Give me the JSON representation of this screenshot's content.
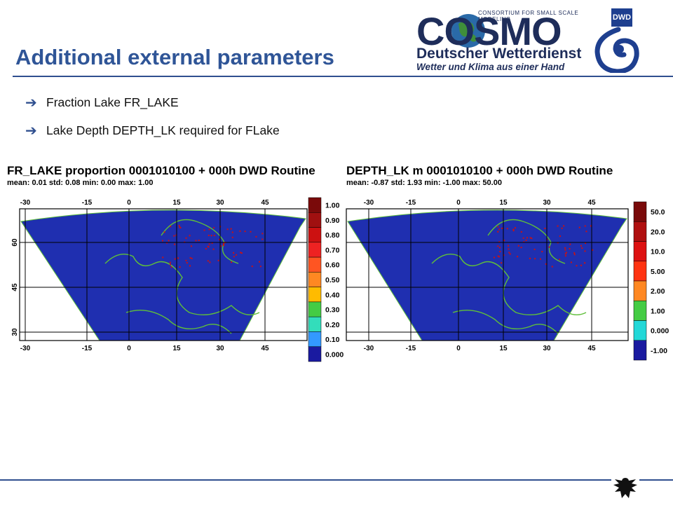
{
  "slide": {
    "title": "Additional external parameters",
    "bullets": [
      {
        "icon": "arrow-right-icon",
        "text": "Fraction Lake FR_LAKE"
      },
      {
        "icon": "arrow-right-icon",
        "text": "Lake Depth DEPTH_LK required for FLake"
      }
    ]
  },
  "logos": {
    "cosmo_word": "COSMO",
    "consortium": "CONSORTIUM FOR SMALL SCALE MODELING",
    "dwd_name": "Deutscher Wetterdienst",
    "dwd_slogan": "Wetter und Klima aus einer Hand",
    "dwd_badge": "DWD"
  },
  "colors": {
    "title": "#2f5597",
    "rule": "#2f4f8f",
    "map_background": "#1f2fb0",
    "coastline": "#5fbf3a",
    "lake_marks": "#cc1111"
  },
  "chart_data": [
    {
      "type": "heatmap",
      "title": "FR_LAKE proportion  0001010100 +   000h DWD Routine",
      "stats": "mean:   0.01  std:   0.08   min:   0.00   max:   1.00",
      "x_ticks": [
        "-30",
        "-15",
        "0",
        "15",
        "30",
        "45"
      ],
      "y_ticks": [
        "60",
        "45",
        "30"
      ],
      "legend": {
        "labels": [
          "1.00",
          "0.90",
          "0.80",
          "0.70",
          "0.60",
          "0.50",
          "0.40",
          "0.30",
          "0.20",
          "0.10",
          "0.000"
        ],
        "colors": [
          "#7a0a0a",
          "#a01010",
          "#cc1111",
          "#ee2222",
          "#ff5522",
          "#ff8822",
          "#ffbb00",
          "#44cc44",
          "#33ddbb",
          "#3399ff",
          "#1a1aa0"
        ]
      }
    },
    {
      "type": "heatmap",
      "title": "DEPTH_LK m  0001010100 +   000h DWD Routine",
      "stats": "mean:  -0.87  std:   1.93   min:  -1.00   max:  50.00",
      "x_ticks": [
        "-30",
        "-15",
        "0",
        "15",
        "30",
        "45"
      ],
      "y_ticks": [
        "60",
        "45",
        "30"
      ],
      "legend": {
        "labels": [
          "50.0",
          "20.0",
          "10.0",
          "5.00",
          "2.00",
          "1.00",
          "0.000",
          "-1.00"
        ],
        "colors": [
          "#7a0a0a",
          "#b01010",
          "#dd1111",
          "#ff3311",
          "#ff8822",
          "#44cc44",
          "#22d8d8",
          "#1a1aa0"
        ]
      }
    }
  ]
}
